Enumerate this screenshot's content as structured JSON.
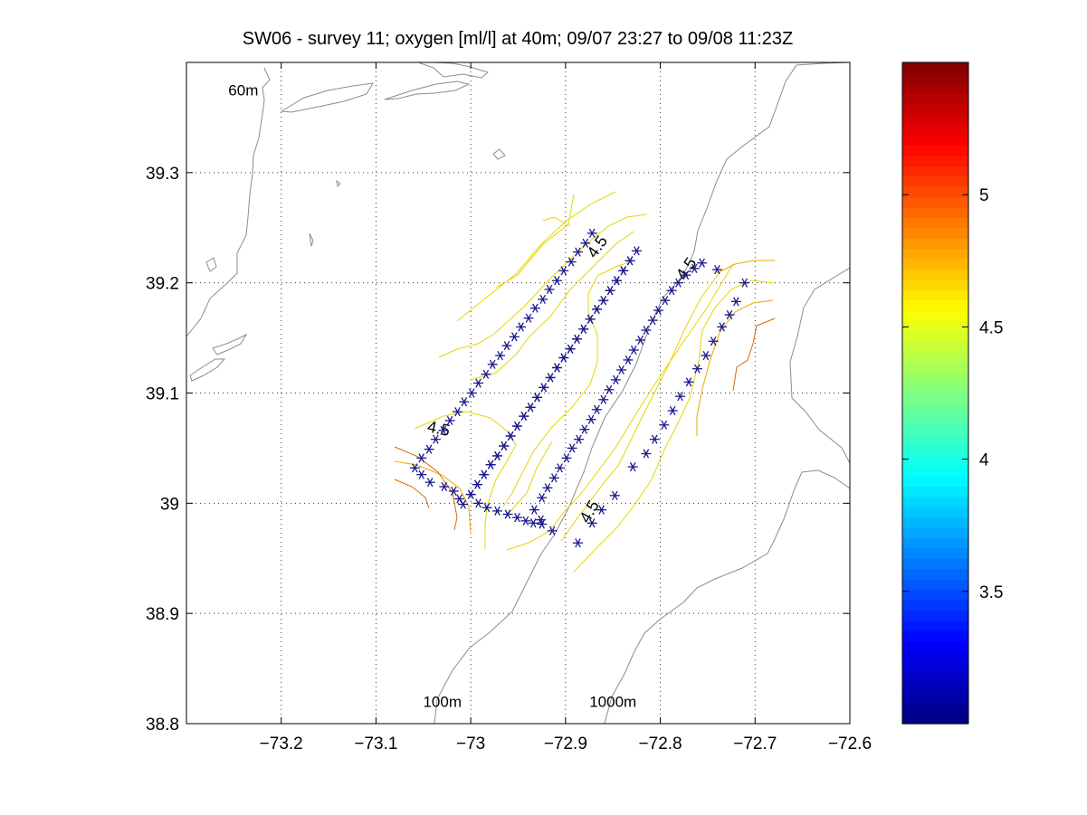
{
  "chart_data": {
    "type": "scatter",
    "title": "SW06 - survey 11; oxygen [ml/l] at 40m; 09/07 23:27 to 09/08 11:23Z",
    "xlabel": "",
    "ylabel": "",
    "xlim": [
      -73.3,
      -72.6
    ],
    "ylim": [
      38.8,
      39.4
    ],
    "xticks": [
      -73.2,
      -73.1,
      -73.0,
      -72.9,
      -72.8,
      -72.7,
      -72.6
    ],
    "xtick_labels": [
      "−73.2",
      "−73.1",
      "−73",
      "−72.9",
      "−72.8",
      "−72.7",
      "−72.6"
    ],
    "yticks": [
      38.8,
      38.9,
      39.0,
      39.1,
      39.2,
      39.3
    ],
    "ytick_labels": [
      "38.8",
      "38.9",
      "39",
      "39.1",
      "39.2",
      "39.3"
    ],
    "grid": true,
    "isobath_labels": [
      {
        "text": "60m",
        "x": -73.24,
        "y": 39.37
      },
      {
        "text": "100m",
        "x": -73.03,
        "y": 38.815
      },
      {
        "text": "1000m",
        "x": -72.85,
        "y": 38.815
      }
    ],
    "contour_labels": [
      {
        "text": "4.5",
        "x": -73.035,
        "y": 39.063,
        "rotate": 12
      },
      {
        "text": "4.5",
        "x": -72.862,
        "y": 39.23,
        "rotate": -55
      },
      {
        "text": "4.5",
        "x": -72.768,
        "y": 39.21,
        "rotate": -55
      },
      {
        "text": "4.5",
        "x": -72.87,
        "y": 38.99,
        "rotate": -60
      }
    ],
    "series": [
      {
        "marker": "asterisk",
        "color": "#1a1a8c",
        "points": [
          [
            -72.872,
            39.245
          ],
          [
            -72.879,
            39.236
          ],
          [
            -72.887,
            39.228
          ],
          [
            -72.894,
            39.219
          ],
          [
            -72.902,
            39.211
          ],
          [
            -72.909,
            39.202
          ],
          [
            -72.917,
            39.194
          ],
          [
            -72.924,
            39.185
          ],
          [
            -72.932,
            39.177
          ],
          [
            -72.939,
            39.168
          ],
          [
            -72.947,
            39.16
          ],
          [
            -72.954,
            39.151
          ],
          [
            -72.962,
            39.143
          ],
          [
            -72.969,
            39.134
          ],
          [
            -72.977,
            39.126
          ],
          [
            -72.984,
            39.117
          ],
          [
            -72.992,
            39.109
          ],
          [
            -72.999,
            39.1
          ],
          [
            -73.007,
            39.092
          ],
          [
            -73.014,
            39.083
          ],
          [
            -73.022,
            39.075
          ],
          [
            -73.029,
            39.066
          ],
          [
            -73.037,
            39.058
          ],
          [
            -73.044,
            39.049
          ],
          [
            -73.052,
            39.041
          ],
          [
            -73.059,
            39.032
          ],
          [
            -73.052,
            39.026
          ],
          [
            -73.043,
            39.019
          ],
          [
            -73.028,
            39.015
          ],
          [
            -73.018,
            39.011
          ],
          [
            -73.012,
            39.004
          ],
          [
            -73.008,
            38.999
          ],
          [
            -73.0,
            39.008
          ],
          [
            -72.993,
            39.017
          ],
          [
            -72.986,
            39.026
          ],
          [
            -72.979,
            39.035
          ],
          [
            -72.972,
            39.043
          ],
          [
            -72.965,
            39.052
          ],
          [
            -72.958,
            39.061
          ],
          [
            -72.951,
            39.07
          ],
          [
            -72.944,
            39.079
          ],
          [
            -72.937,
            39.087
          ],
          [
            -72.93,
            39.096
          ],
          [
            -72.923,
            39.105
          ],
          [
            -72.916,
            39.114
          ],
          [
            -72.909,
            39.123
          ],
          [
            -72.902,
            39.132
          ],
          [
            -72.895,
            39.14
          ],
          [
            -72.888,
            39.149
          ],
          [
            -72.881,
            39.158
          ],
          [
            -72.874,
            39.167
          ],
          [
            -72.867,
            39.176
          ],
          [
            -72.86,
            39.184
          ],
          [
            -72.853,
            39.193
          ],
          [
            -72.846,
            39.202
          ],
          [
            -72.839,
            39.211
          ],
          [
            -72.832,
            39.22
          ],
          [
            -72.825,
            39.229
          ],
          [
            -72.832,
            39.22
          ],
          [
            -72.839,
            39.211
          ],
          [
            -72.846,
            39.202
          ],
          [
            -72.853,
            39.193
          ],
          [
            -72.86,
            39.184
          ],
          [
            -72.867,
            39.176
          ],
          [
            -72.874,
            39.167
          ],
          [
            -72.881,
            39.158
          ],
          [
            -72.888,
            39.149
          ],
          [
            -72.895,
            39.14
          ],
          [
            -72.902,
            39.132
          ],
          [
            -72.909,
            39.123
          ],
          [
            -72.916,
            39.114
          ],
          [
            -72.923,
            39.105
          ],
          [
            -72.93,
            39.096
          ],
          [
            -72.937,
            39.087
          ],
          [
            -72.944,
            39.079
          ],
          [
            -72.951,
            39.07
          ],
          [
            -72.958,
            39.061
          ],
          [
            -72.965,
            39.052
          ],
          [
            -72.972,
            39.043
          ],
          [
            -72.979,
            39.035
          ],
          [
            -72.986,
            39.026
          ],
          [
            -72.993,
            39.017
          ],
          [
            -73.0,
            39.008
          ],
          [
            -72.992,
            39.0
          ],
          [
            -72.983,
            38.996
          ],
          [
            -72.972,
            38.993
          ],
          [
            -72.961,
            38.99
          ],
          [
            -72.951,
            38.987
          ],
          [
            -72.942,
            38.984
          ],
          [
            -72.934,
            38.982
          ],
          [
            -72.925,
            38.981
          ],
          [
            -72.914,
            38.975
          ],
          [
            -72.926,
            38.985
          ],
          [
            -72.933,
            38.994
          ],
          [
            -72.925,
            39.005
          ],
          [
            -72.919,
            39.014
          ],
          [
            -72.912,
            39.023
          ],
          [
            -72.906,
            39.032
          ],
          [
            -72.899,
            39.041
          ],
          [
            -72.893,
            39.05
          ],
          [
            -72.886,
            39.058
          ],
          [
            -72.88,
            39.067
          ],
          [
            -72.873,
            39.076
          ],
          [
            -72.867,
            39.085
          ],
          [
            -72.86,
            39.094
          ],
          [
            -72.854,
            39.103
          ],
          [
            -72.847,
            39.112
          ],
          [
            -72.841,
            39.121
          ],
          [
            -72.834,
            39.13
          ],
          [
            -72.828,
            39.139
          ],
          [
            -72.821,
            39.148
          ],
          [
            -72.815,
            39.157
          ],
          [
            -72.808,
            39.166
          ],
          [
            -72.802,
            39.175
          ],
          [
            -72.795,
            39.184
          ],
          [
            -72.788,
            39.193
          ],
          [
            -72.781,
            39.2
          ],
          [
            -72.773,
            39.207
          ],
          [
            -72.764,
            39.213
          ],
          [
            -72.756,
            39.218
          ],
          [
            -72.74,
            39.212
          ],
          [
            -72.711,
            39.2
          ],
          [
            -72.72,
            39.183
          ],
          [
            -72.727,
            39.171
          ],
          [
            -72.735,
            39.16
          ],
          [
            -72.744,
            39.147
          ],
          [
            -72.752,
            39.134
          ],
          [
            -72.761,
            39.122
          ],
          [
            -72.77,
            39.11
          ],
          [
            -72.779,
            39.097
          ],
          [
            -72.787,
            39.084
          ],
          [
            -72.796,
            39.071
          ],
          [
            -72.806,
            39.058
          ],
          [
            -72.815,
            39.045
          ],
          [
            -72.829,
            39.033
          ],
          [
            -72.848,
            39.007
          ],
          [
            -72.862,
            38.994
          ],
          [
            -72.872,
            38.982
          ],
          [
            -72.887,
            38.964
          ]
        ]
      }
    ],
    "colorbar": {
      "range": [
        3.0,
        5.5
      ],
      "ticks": [
        3.5,
        4.0,
        4.5,
        5.0
      ],
      "tick_labels": [
        "3.5",
        "4",
        "4.5",
        "5"
      ],
      "colormap": "jet"
    }
  }
}
